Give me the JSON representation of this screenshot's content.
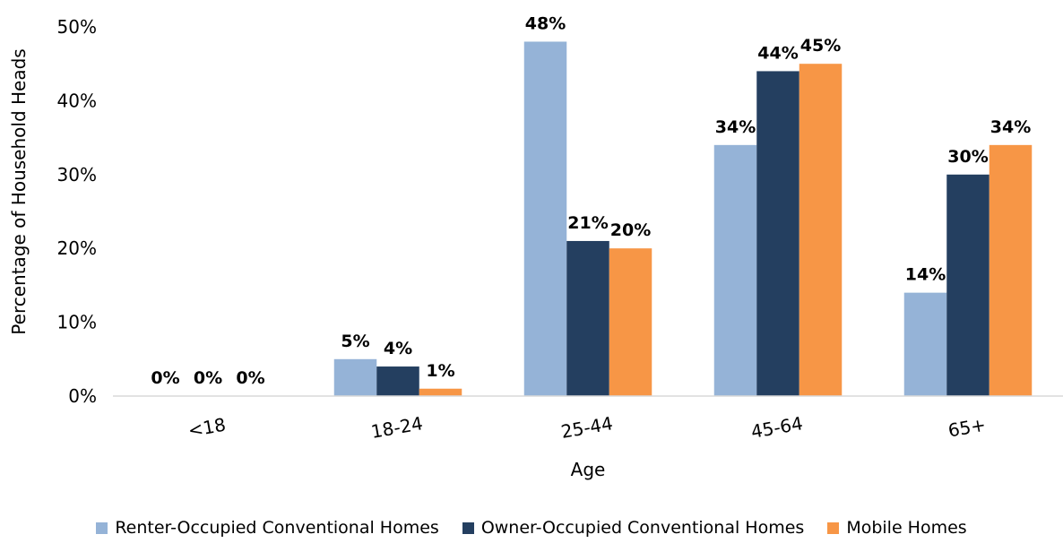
{
  "chart_data": {
    "type": "bar",
    "categories": [
      "<18",
      "18-24",
      "25-44",
      "45-64",
      "65+"
    ],
    "series": [
      {
        "name": "Renter-Occupied Conventional Homes",
        "color": "#95B3D7",
        "values": [
          0,
          5,
          48,
          34,
          14
        ]
      },
      {
        "name": "Owner-Occupied Conventional Homes",
        "color": "#243F60",
        "values": [
          0,
          4,
          21,
          44,
          30
        ]
      },
      {
        "name": "Mobile Homes",
        "color": "#F79646",
        "values": [
          0,
          1,
          20,
          45,
          34
        ]
      }
    ],
    "data_labels": [
      [
        "0%",
        "5%",
        "48%",
        "34%",
        "14%"
      ],
      [
        "0%",
        "4%",
        "21%",
        "44%",
        "30%"
      ],
      [
        "0%",
        "1%",
        "20%",
        "45%",
        "34%"
      ]
    ],
    "y_ticks": [
      "0%",
      "10%",
      "20%",
      "30%",
      "40%",
      "50%"
    ],
    "y_tick_values": [
      0,
      10,
      20,
      30,
      40,
      50
    ],
    "ylim": [
      0,
      50
    ],
    "xlabel": "Age",
    "ylabel": "Percentage of Household Heads",
    "grid": false,
    "legend_position": "bottom"
  }
}
